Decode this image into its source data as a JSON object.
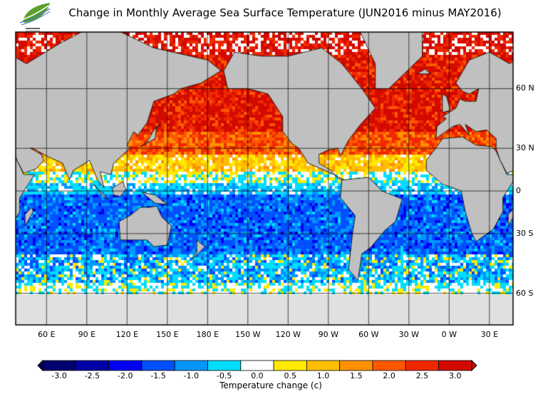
{
  "title": "Change in Monthly Average Sea Surface Temperature (JUN2016 minus MAY2016)",
  "logo": {
    "text": "HKO logo"
  },
  "map": {
    "longitude_labels": [
      "60 E",
      "90 E",
      "120 E",
      "150 E",
      "180 E",
      "150 W",
      "120 W",
      "90 W",
      "60 W",
      "30 W",
      "0 W",
      "30 E"
    ],
    "latitude_labels": [
      "60 N",
      "30 N",
      "0",
      "30 S",
      "60 S"
    ],
    "land_color": "#c0c0c0",
    "sea_ice_color": "#e0e0e0"
  },
  "colorbar": {
    "title": "Temperature change  (c)",
    "ticks": [
      "-3.0",
      "-2.5",
      "-2.0",
      "-1.5",
      "-1.0",
      "-0.5",
      "0.0",
      "0.5",
      "1.0",
      "1.5",
      "2.0",
      "2.5",
      "3.0"
    ],
    "colors": [
      "#00006e",
      "#0000a8",
      "#0000f0",
      "#0050ff",
      "#0096ff",
      "#00ddff",
      "#ffffff",
      "#ffea00",
      "#ffbe00",
      "#ff9100",
      "#ff5800",
      "#f02800",
      "#d20a00"
    ],
    "low_extend_color": "#00006e",
    "high_extend_color": "#d20a00"
  }
}
